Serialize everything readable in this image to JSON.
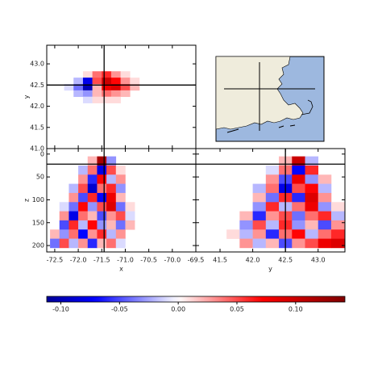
{
  "chart_data": [
    {
      "type": "heatmap",
      "ylabel": "y",
      "x": [
        -72.2,
        -72.0,
        -71.8,
        -71.6,
        -71.4,
        -71.2,
        -71.0,
        -70.8
      ],
      "y": [
        42.75,
        42.6,
        42.45,
        42.3,
        42.15
      ],
      "values": [
        [
          null,
          null,
          0.01,
          0.04,
          0.06,
          0.03,
          0.01,
          null
        ],
        [
          null,
          -0.02,
          -0.08,
          0.05,
          0.1,
          0.07,
          0.03,
          0.01
        ],
        [
          -0.01,
          -0.04,
          -0.1,
          0.02,
          0.08,
          0.09,
          0.05,
          0.02
        ],
        [
          null,
          -0.02,
          -0.03,
          0.02,
          0.04,
          0.03,
          0.02,
          null
        ],
        [
          null,
          null,
          -0.01,
          0.01,
          0.01,
          0.01,
          null,
          null
        ]
      ],
      "xlim": [
        -72.67,
        -69.5
      ],
      "ylim": [
        41.0,
        43.44
      ],
      "xticks": [
        -72.5,
        -72,
        -71.5,
        -71,
        -70.5,
        -70,
        -69.5
      ],
      "xticklabels": false,
      "yticks": [
        {
          "value": 41,
          "label": "41.0"
        },
        41.5,
        {
          "value": 42,
          "label": "42.0"
        },
        42.5,
        {
          "value": 43,
          "label": "43.0"
        }
      ],
      "yticklabels": true,
      "crosshair": {
        "x": -71.45,
        "y": 42.5
      }
    },
    {
      "type": "heatmap",
      "xlabel": "x",
      "ylabel": "z",
      "x": [
        -72.5,
        -72.3,
        -72.1,
        -71.9,
        -71.7,
        -71.5,
        -71.3,
        -71.1,
        -70.9,
        -70.7
      ],
      "y": [
        15,
        35,
        55,
        75,
        95,
        115,
        135,
        155,
        175,
        195
      ],
      "values": [
        [
          null,
          null,
          null,
          null,
          0.02,
          0.12,
          -0.03,
          null,
          null,
          null
        ],
        [
          null,
          null,
          null,
          -0.02,
          0.04,
          -0.08,
          0.05,
          0.01,
          null,
          null
        ],
        [
          null,
          null,
          null,
          0.03,
          -0.06,
          0.07,
          -0.02,
          0.03,
          null,
          null
        ],
        [
          null,
          null,
          -0.02,
          0.05,
          -0.09,
          0.04,
          0.06,
          -0.03,
          null,
          null
        ],
        [
          null,
          null,
          0.03,
          -0.05,
          0.06,
          -0.07,
          0.08,
          0.02,
          null,
          null
        ],
        [
          null,
          -0.01,
          -0.04,
          0.07,
          -0.03,
          0.05,
          0.09,
          -0.04,
          0.01,
          null
        ],
        [
          null,
          0.03,
          -0.08,
          0.04,
          0.02,
          -0.05,
          0.03,
          0.05,
          -0.01,
          null
        ],
        [
          null,
          -0.05,
          0.06,
          -0.02,
          0.07,
          -0.03,
          0.02,
          -0.04,
          0.02,
          null
        ],
        [
          0.02,
          -0.03,
          0.04,
          -0.07,
          0.03,
          0.06,
          -0.02,
          0.03,
          null,
          null
        ],
        [
          -0.04,
          0.05,
          -0.02,
          0.03,
          -0.06,
          0.02,
          0.04,
          -0.01,
          null,
          null
        ]
      ],
      "xlim": [
        -72.67,
        -69.5
      ],
      "ylim": [
        214,
        -12
      ],
      "xticks": [
        -72.5,
        {
          "value": -72,
          "label": "-72.0"
        },
        -71.5,
        {
          "value": -71,
          "label": "-71.0"
        },
        -70.5,
        {
          "value": -70,
          "label": "-70.0"
        },
        -69.5
      ],
      "xticklabels": true,
      "yticks": [
        0,
        50,
        100,
        150,
        200
      ],
      "yticklabels": true,
      "crosshair": {
        "x": -71.45,
        "y": 22
      }
    },
    {
      "type": "heatmap",
      "xlabel": "y",
      "x": [
        41.7,
        41.9,
        42.1,
        42.3,
        42.5,
        42.7,
        42.9,
        43.1,
        43.3
      ],
      "y": [
        15,
        35,
        55,
        75,
        95,
        115,
        135,
        155,
        175,
        195
      ],
      "values": [
        [
          null,
          null,
          null,
          null,
          0.02,
          0.1,
          -0.02,
          null,
          null
        ],
        [
          null,
          null,
          null,
          -0.01,
          0.04,
          -0.07,
          0.06,
          null,
          null
        ],
        [
          null,
          null,
          null,
          0.03,
          -0.05,
          0.08,
          -0.03,
          0.02,
          null
        ],
        [
          null,
          null,
          -0.02,
          0.04,
          -0.08,
          0.05,
          0.07,
          -0.02,
          null
        ],
        [
          null,
          null,
          0.02,
          -0.04,
          0.06,
          -0.06,
          0.09,
          0.03,
          null
        ],
        [
          null,
          null,
          -0.03,
          0.06,
          -0.02,
          0.04,
          0.08,
          -0.03,
          0.01
        ],
        [
          null,
          0.02,
          -0.06,
          0.03,
          0.05,
          -0.04,
          0.04,
          0.06,
          -0.02
        ],
        [
          null,
          -0.03,
          0.05,
          -0.02,
          0.06,
          -0.03,
          0.02,
          -0.05,
          0.03
        ],
        [
          0.01,
          -0.02,
          0.03,
          -0.06,
          0.04,
          0.07,
          -0.02,
          0.04,
          0.06
        ],
        [
          null,
          0.03,
          -0.02,
          0.02,
          -0.05,
          0.03,
          0.05,
          0.08,
          0.09
        ]
      ],
      "xlim": [
        41.13,
        43.41
      ],
      "ylim": [
        214,
        -12
      ],
      "xticks": [
        41.5,
        {
          "value": 42,
          "label": "42.0"
        },
        42.5,
        {
          "value": 43,
          "label": "43.0"
        }
      ],
      "xticklabels": true,
      "yticks": [
        0,
        50,
        100,
        150,
        200
      ],
      "yticklabels": false,
      "crosshair": {
        "x": 42.5,
        "y": 22
      }
    },
    {
      "type": "colorbar",
      "xlim": [
        -0.112,
        0.142
      ],
      "xticks": [
        {
          "value": -0.1,
          "label": "-0.10"
        },
        {
          "value": -0.05,
          "label": "-0.05"
        },
        {
          "value": 0,
          "label": "0.00"
        },
        {
          "value": 0.05,
          "label": "0.05"
        },
        {
          "value": 0.1,
          "label": "0.10"
        }
      ]
    }
  ]
}
